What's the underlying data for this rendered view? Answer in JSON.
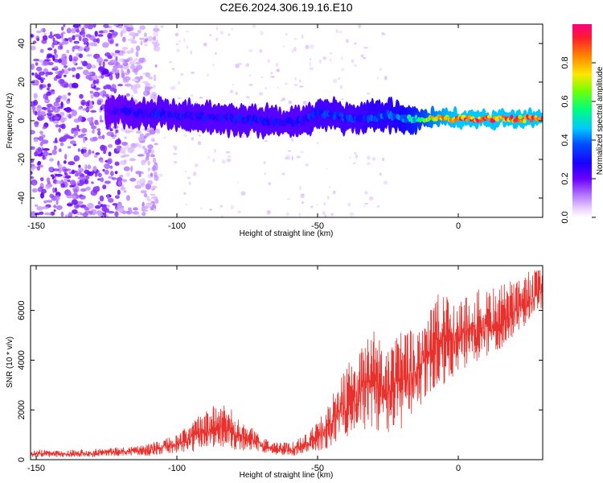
{
  "title": "C2E6.2024.306.19.16.E10",
  "chart_data": [
    {
      "type": "heatmap",
      "title": "C2E6.2024.306.19.16.E10",
      "xlabel": "Height of straight line (km)",
      "ylabel": "Frequency (Hz)",
      "xlim": [
        -152,
        30
      ],
      "ylim": [
        -50,
        50
      ],
      "xticks": [
        -150,
        -100,
        -50,
        0
      ],
      "yticks": [
        -40,
        -20,
        0,
        20,
        40
      ],
      "colorbar": {
        "label": "Normalized spectral amplitude",
        "range": [
          0,
          1
        ],
        "ticks": [
          0.0,
          0.2,
          0.4,
          0.6,
          0.8
        ],
        "tick_labels": [
          "0.0",
          "0.2",
          "0.4",
          "0.6",
          "0.8"
        ],
        "colormap": [
          "#ffffff",
          "#e6ccff",
          "#b070ff",
          "#6a00ff",
          "#0000ff",
          "#00c8ff",
          "#00ff7a",
          "#c8ff00",
          "#ffd000",
          "#ff6a00",
          "#ff0060"
        ]
      },
      "ridge": {
        "x": [
          -122,
          -110,
          -100,
          -90,
          -80,
          -70,
          -60,
          -55,
          -50,
          -45,
          -40,
          -35,
          -30,
          -25,
          -20,
          -15,
          -10,
          -5,
          0,
          10,
          20,
          30
        ],
        "center_freq": [
          5,
          4,
          3,
          2,
          1,
          0,
          -1,
          0,
          4,
          3,
          2,
          1,
          2,
          3,
          1,
          1,
          1,
          1,
          1,
          1,
          1,
          1
        ],
        "peak_amplitude": [
          0.25,
          0.3,
          0.3,
          0.3,
          0.3,
          0.3,
          0.3,
          0.3,
          0.35,
          0.35,
          0.35,
          0.35,
          0.4,
          0.4,
          0.45,
          0.55,
          0.75,
          0.85,
          0.9,
          0.9,
          0.9,
          0.9
        ]
      }
    },
    {
      "type": "line",
      "xlabel": "Height of straight line (km)",
      "ylabel": "SNR (10 * v/v)",
      "xlim": [
        -152,
        30
      ],
      "ylim": [
        0,
        7800
      ],
      "xticks": [
        -150,
        -100,
        -50,
        0
      ],
      "yticks": [
        0,
        2000,
        4000,
        6000
      ],
      "color": "#e8302c",
      "envelope": {
        "x": [
          -152,
          -140,
          -130,
          -120,
          -110,
          -100,
          -95,
          -90,
          -85,
          -80,
          -75,
          -70,
          -65,
          -60,
          -55,
          -50,
          -45,
          -40,
          -35,
          -30,
          -25,
          -20,
          -15,
          -10,
          -5,
          0,
          5,
          10,
          15,
          20,
          25,
          30
        ],
        "low": [
          100,
          100,
          100,
          150,
          150,
          250,
          300,
          400,
          500,
          400,
          350,
          300,
          200,
          150,
          200,
          300,
          500,
          900,
          1100,
          1200,
          1000,
          1200,
          1800,
          2500,
          3000,
          3500,
          3700,
          4000,
          4400,
          5000,
          5500,
          6000
        ],
        "high": [
          400,
          400,
          450,
          500,
          650,
          1000,
          1500,
          2000,
          2300,
          2000,
          1500,
          900,
          700,
          700,
          1000,
          1500,
          2500,
          3800,
          4500,
          5400,
          4500,
          5200,
          5600,
          6500,
          6800,
          6600,
          6800,
          6900,
          7000,
          7300,
          7600,
          7700
        ]
      }
    }
  ]
}
